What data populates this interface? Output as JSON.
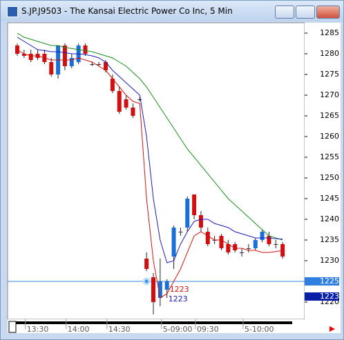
{
  "window_title": "S.JP.J9503 - The Kansai Electric Power Co Inc, 5 Min",
  "chart_data": {
    "type": "candlestick",
    "categories": [
      null,
      null,
      "13:30",
      null,
      null,
      null,
      null,
      null,
      "14:00",
      null,
      null,
      null,
      null,
      null,
      "14:30",
      null,
      null,
      null,
      null,
      null,
      null,
      null,
      "5-09:00",
      null,
      null,
      null,
      null,
      "09:30",
      null,
      null,
      null,
      null,
      null,
      null,
      "5-10:00",
      null,
      null,
      null,
      null,
      null
    ],
    "open": [
      1282,
      1280,
      1280,
      1280,
      1280,
      1278,
      1275,
      1282,
      1277,
      1278,
      1282,
      1277.5,
      1277.5,
      1278,
      1274,
      1271,
      1269,
      1267,
      1269,
      1230.5,
      1226,
      1221,
      1223,
      1231,
      1237,
      1238,
      1246,
      1241,
      1237,
      1235,
      1236,
      1234,
      1234,
      1232,
      1233,
      1233,
      1235,
      1236,
      1234,
      1234
    ],
    "high": [
      1282.5,
      1281,
      1281,
      1281,
      1281,
      1279,
      1282,
      1282.5,
      1280,
      1282.5,
      1282.5,
      1278,
      1278,
      1278.5,
      1275,
      1272,
      1270,
      1268,
      1269.5,
      1232,
      1227,
      1230.5,
      1225.5,
      1238.5,
      1238,
      1245.5,
      1246,
      1242,
      1238,
      1236,
      1236.5,
      1235,
      1234.5,
      1233,
      1234,
      1235.5,
      1237.5,
      1237,
      1235,
      1234.5
    ],
    "low": [
      1279.5,
      1279,
      1278,
      1278.5,
      1277.5,
      1274.5,
      1274,
      1276,
      1276.5,
      1277.5,
      1279.5,
      1277,
      1277,
      1275.5,
      1270.5,
      1265.5,
      1266.5,
      1264.5,
      1268.5,
      1227.5,
      1217,
      1219,
      1221,
      1228,
      1236,
      1237,
      1240,
      1237,
      1233.5,
      1234,
      1232.5,
      1231.5,
      1232,
      1231,
      1232,
      1232.5,
      1234.5,
      1233.5,
      1233,
      1230.5
    ],
    "close": [
      1280,
      1279.5,
      1278.5,
      1279,
      1278,
      1275,
      1282,
      1277,
      1279,
      1282,
      1280,
      1277.5,
      1277.5,
      1276,
      1271,
      1266,
      1267,
      1265,
      1269,
      1228,
      1220,
      1225,
      1225,
      1238,
      1237,
      1245,
      1241,
      1238,
      1234,
      1235,
      1233,
      1232,
      1232.5,
      1232,
      1233,
      1235,
      1237,
      1234,
      1234,
      1231
    ],
    "up_color": "#1a6fd8",
    "down_color": "#d01010",
    "series": [
      {
        "color": "#1a8a1a",
        "values": [
          1285,
          1284,
          1283.5,
          1283,
          1282.5,
          1282,
          1282,
          1281.5,
          1281.3,
          1281,
          1280.8,
          1280.5,
          1280,
          1279.5,
          1279,
          1278,
          1277,
          1275.5,
          1274,
          1272,
          1269.5,
          1267,
          1264.5,
          1262,
          1259.5,
          1257,
          1255,
          1253,
          1251,
          1249,
          1247,
          1245,
          1243.5,
          1242,
          1240.5,
          1239,
          1237.5,
          1236,
          1235.5,
          1235
        ]
      },
      {
        "color": "#1a1ab8",
        "values": [
          1284,
          1283,
          1282,
          1281,
          1280.8,
          1280.5,
          1280.5,
          1280.3,
          1280,
          1280,
          1279.8,
          1279.5,
          1279,
          1278,
          1276,
          1274.5,
          1273,
          1271.5,
          1270,
          1260,
          1245,
          1235,
          1229.5,
          1230,
          1234,
          1237,
          1239.5,
          1240,
          1240,
          1239,
          1238.5,
          1238,
          1237,
          1236.5,
          1236,
          1235.5,
          1235.5,
          1235.5,
          1235.3,
          1235.2
        ]
      },
      {
        "color": "#d01010",
        "values": [
          1281,
          1280,
          1279.5,
          1279.5,
          1279,
          1278.5,
          1278.5,
          1278.5,
          1278.5,
          1279,
          1278.5,
          1278,
          1277,
          1276,
          1274,
          1272,
          1270,
          1268.5,
          1268,
          1245,
          1230,
          1221,
          1222,
          1225,
          1228,
          1232,
          1236,
          1237,
          1236,
          1235,
          1235,
          1234,
          1233,
          1233,
          1232.5,
          1232.5,
          1232,
          1232,
          1232.2,
          1232.5
        ]
      }
    ],
    "ylim": [
      1215.83,
      1287.5
    ],
    "yticks": [
      1220,
      1225,
      1230,
      1235,
      1240,
      1245,
      1250,
      1255,
      1260,
      1265,
      1270,
      1275,
      1280,
      1285
    ],
    "price_markers": [
      {
        "value": 1225,
        "color": "#2f7fe0"
      },
      {
        "value": 1223,
        "color": "#0a1fa8"
      }
    ],
    "annotations": [
      {
        "text": "1223",
        "value": 1223,
        "color": "#d01010"
      },
      {
        "text": "1223",
        "value": 1223,
        "color": "#1a1ab8"
      }
    ]
  }
}
